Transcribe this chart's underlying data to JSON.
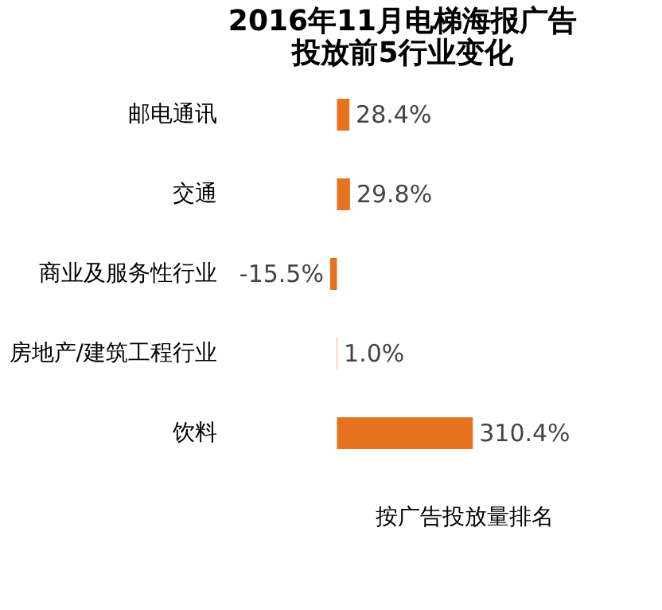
{
  "chart_data": {
    "type": "bar",
    "orientation": "horizontal",
    "title": [
      "2016年11月电梯海报广告",
      "投放前5行业变化"
    ],
    "categories": [
      "邮电通讯",
      "交通",
      "商业及服务性行业",
      "房地产/建筑工程行业",
      "饮料"
    ],
    "values": [
      28.4,
      29.8,
      -15.5,
      1.0,
      310.4
    ],
    "value_labels": [
      "28.4%",
      "29.8%",
      "-15.5%",
      "1.0%",
      "310.4%"
    ],
    "color": "#e8731f",
    "annotations": [
      "按广告投放量排名"
    ]
  }
}
